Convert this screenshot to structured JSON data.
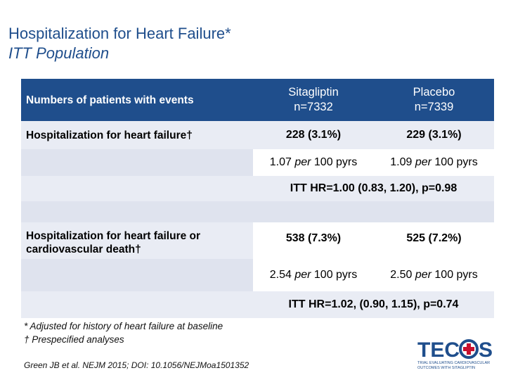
{
  "title": {
    "line1": "Hospitalization for Heart Failure*",
    "line2": "ITT Population"
  },
  "table": {
    "header": {
      "label": "Numbers of patients with events",
      "col1_name": "Sitagliptin",
      "col1_n": "n=7332",
      "col2_name": "Placebo",
      "col2_n": "n=7339"
    },
    "hhf": {
      "label": "Hospitalization for heart failure†",
      "sita_events": "228 (3.1%)",
      "placebo_events": "229 (3.1%)",
      "sita_rate_num": "1.07",
      "sita_rate_per": "per",
      "sita_rate_unit": "100 pyrs",
      "placebo_rate_num": "1.09",
      "placebo_rate_per": "per",
      "placebo_rate_unit": "100 pyrs",
      "hr": "ITT HR=1.00 (0.83, 1.20), p=0.98"
    },
    "hhf_cvd": {
      "label_line1": "Hospitalization for heart failure or",
      "label_line2": "cardiovascular death†",
      "sita_events": "538 (7.3%)",
      "placebo_events": "525 (7.2%)",
      "sita_rate_num": "2.54",
      "sita_rate_per": "per",
      "sita_rate_unit": "100 pyrs",
      "placebo_rate_num": "2.50",
      "placebo_rate_per": "per",
      "placebo_rate_unit": "100 pyrs",
      "hr": "ITT HR=1.02, (0.90, 1.15), p=0.74"
    }
  },
  "footnotes": {
    "note1": "* Adjusted for history of heart failure at baseline",
    "note2": "† Prespecified analyses",
    "citation": "Green JB et al. NEJM 2015; DOI: 10.1056/NEJMoa1501352"
  },
  "logo": {
    "letters": "TEC",
    "letters2": "S",
    "tagline1": "TRIAL EVALUATING CARDIOVASCULAR",
    "tagline2": "OUTCOMES WITH SITAGLIPTIN",
    "color_blue": "#1f4e8c",
    "color_red": "#c8102e"
  },
  "colors": {
    "title": "#1f4e8c",
    "header_bg": "#1f4e8c",
    "row_alt": "#e9ecf4"
  }
}
